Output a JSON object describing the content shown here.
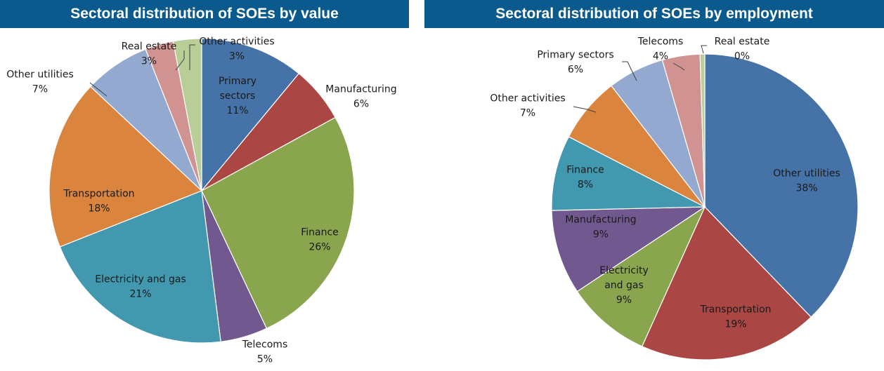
{
  "chart_data": [
    {
      "type": "pie",
      "title": "Sectoral distribution of SOEs by value",
      "slices": [
        {
          "label": "Primary sectors",
          "label_lines": [
            "Primary",
            "sectors"
          ],
          "value": 11,
          "value_text": "11%",
          "color": "#4572a7"
        },
        {
          "label": "Manufacturing",
          "value": 6,
          "value_text": "6%",
          "color": "#aa4643"
        },
        {
          "label": "Finance",
          "value": 26,
          "value_text": "26%",
          "color": "#89a54e"
        },
        {
          "label": "Telecoms",
          "value": 5,
          "value_text": "5%",
          "color": "#71588f"
        },
        {
          "label": "Electricity and gas",
          "value": 21,
          "value_text": "21%",
          "color": "#4198af"
        },
        {
          "label": "Transportation",
          "value": 18,
          "value_text": "18%",
          "color": "#db843d"
        },
        {
          "label": "Other utilities",
          "value": 7,
          "value_text": "7%",
          "color": "#93a9cf"
        },
        {
          "label": "Real estate",
          "value": 3,
          "value_text": "3%",
          "color": "#d19392"
        },
        {
          "label": "Other activities",
          "value": 3,
          "value_text": "3%",
          "color": "#b9cd96"
        }
      ]
    },
    {
      "type": "pie",
      "title": "Sectoral distribution of SOEs by employment",
      "slices": [
        {
          "label": "Other utilities",
          "value": 38,
          "value_text": "38%",
          "color": "#4572a7"
        },
        {
          "label": "Transportation",
          "value": 19,
          "value_text": "19%",
          "color": "#aa4643"
        },
        {
          "label": "Electricity and gas",
          "label_lines": [
            "Electricity",
            "and gas"
          ],
          "value": 9,
          "value_text": "9%",
          "color": "#89a54e"
        },
        {
          "label": "Manufacturing",
          "value": 9,
          "value_text": "9%",
          "color": "#71588f"
        },
        {
          "label": "Finance",
          "value": 8,
          "value_text": "8%",
          "color": "#4198af"
        },
        {
          "label": "Other activities",
          "value": 7,
          "value_text": "7%",
          "color": "#db843d"
        },
        {
          "label": "Primary sectors",
          "value": 6,
          "value_text": "6%",
          "color": "#93a9cf"
        },
        {
          "label": "Telecoms",
          "value": 4,
          "value_text": "4%",
          "color": "#d19392"
        },
        {
          "label": "Real estate",
          "value": 0.5,
          "value_text": "0%",
          "color": "#b9cd96"
        }
      ]
    }
  ]
}
